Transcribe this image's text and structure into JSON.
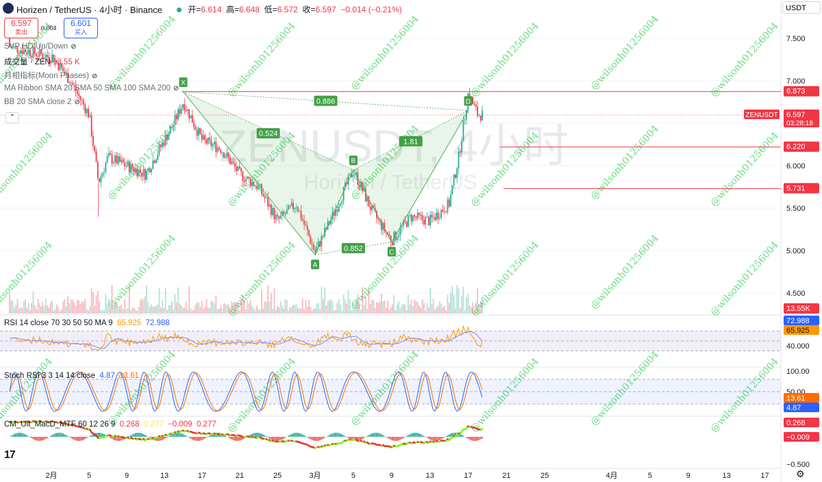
{
  "header": {
    "symbol_title": "Horizen / TetherUS · 4小时 · Binance",
    "ohlc": [
      {
        "label": "开=",
        "value": "6.614"
      },
      {
        "label": "高=",
        "value": "6.648"
      },
      {
        "label": "低=",
        "value": "6.572"
      },
      {
        "label": "收=",
        "value": "6.597"
      },
      {
        "label": "",
        "value": "−0.014 (−0.21%)"
      }
    ],
    "currency": "USDT"
  },
  "trade": {
    "sell_price": "6.597",
    "sell_label": "卖出",
    "buy_price": "6.601",
    "buy_label": "买入",
    "spread": "0.004"
  },
  "indicators": {
    "svp": "SVP HD Up/Down",
    "volume": "成交量 · ZEN",
    "volume_value": "13.55 K",
    "moon": "月相指标(Moon Phases)",
    "ma_ribbon": "MA Ribbon SMA 20 SMA 50 SMA 100 SMA 200",
    "bb": "BB 20 SMA close 2",
    "rsi_label": "RSI 14 close 70 30 50 50 MA 9",
    "rsi_value": "65.925",
    "rsi_ma_value": "72.988",
    "stoch_label": "Stoch RSI 3 3 14 14 close",
    "stoch_k": "4.87",
    "stoch_d": "13.61",
    "macd_label": "CM_Ult_MacD_MTF 60 12 26 9",
    "macd_v1": "0.268",
    "macd_v2": "0.277",
    "macd_v3": "−0.009",
    "macd_v4": "0.277"
  },
  "watermark": {
    "symbol": "ZENUSDT, 4小时",
    "name": "Horizen / TetherUS",
    "user": "@wilsonh01256004"
  },
  "colors": {
    "up": "#22ab94",
    "down": "#f23645",
    "pattern": "#4caf50",
    "level": "#f23645",
    "rsi": "#7e57c2",
    "stoch_k": "#2962ff",
    "stoch_d": "#ff6d00"
  },
  "chart_data": {
    "type": "candlestick",
    "title": "Horizen / TetherUS · 4小时 · Binance",
    "x_ticks": [
      "2月",
      "5",
      "9",
      "13",
      "17",
      "21",
      "25",
      "3月",
      "5",
      "9",
      "13",
      "17",
      "21",
      "25",
      "4月",
      "5",
      "9",
      "13",
      "17"
    ],
    "y_ticks": [
      "7.500",
      "7.000",
      "6.500",
      "6.000",
      "5.500",
      "5.000",
      "4.500"
    ],
    "ylim": [
      4.3,
      7.8
    ],
    "price_path": [
      {
        "date": "2/1",
        "price": 7.3
      },
      {
        "date": "2/3",
        "price": 7.0
      },
      {
        "date": "2/5",
        "price": 6.6
      },
      {
        "date": "2/6",
        "price": 5.8
      },
      {
        "date": "2/7",
        "price": 6.1
      },
      {
        "date": "2/9",
        "price": 6.0
      },
      {
        "date": "2/11",
        "price": 5.9
      },
      {
        "date": "2/14",
        "price": 6.5
      },
      {
        "date": "2/15",
        "price": 6.75
      },
      {
        "date": "2/17",
        "price": 6.3
      },
      {
        "date": "2/19",
        "price": 6.2
      },
      {
        "date": "2/21",
        "price": 5.9
      },
      {
        "date": "2/23",
        "price": 5.75
      },
      {
        "date": "2/25",
        "price": 5.35
      },
      {
        "date": "2/27",
        "price": 5.55
      },
      {
        "date": "3/1",
        "price": 4.98
      },
      {
        "date": "3/3",
        "price": 5.45
      },
      {
        "date": "3/5",
        "price": 5.95
      },
      {
        "date": "3/7",
        "price": 5.45
      },
      {
        "date": "3/9",
        "price": 5.12
      },
      {
        "date": "3/11",
        "price": 5.4
      },
      {
        "date": "3/13",
        "price": 5.35
      },
      {
        "date": "3/15",
        "price": 5.55
      },
      {
        "date": "3/16",
        "price": 6.1
      },
      {
        "date": "3/17",
        "price": 6.85
      },
      {
        "date": "3/18",
        "price": 6.6
      }
    ],
    "pattern": {
      "points": [
        {
          "label": "X",
          "date": "2/15",
          "price": 6.87
        },
        {
          "label": "A",
          "date": "3/1",
          "price": 4.95
        },
        {
          "label": "B",
          "date": "3/5",
          "price": 5.95
        },
        {
          "label": "C",
          "date": "3/9",
          "price": 5.1
        },
        {
          "label": "D",
          "date": "3/17",
          "price": 6.65
        }
      ],
      "ratios": [
        "0.886",
        "0.524",
        "1.81",
        "0.852"
      ]
    },
    "levels": [
      "6.873",
      "6.220",
      "5.731"
    ],
    "last_price": {
      "label": "ZENUSDT",
      "value": "6.597",
      "countdown": "03:28:18"
    },
    "volume_last": "13.55K",
    "rsi": {
      "ticks": [
        "40.000"
      ],
      "values": [
        "72.988",
        "65.925"
      ]
    },
    "stoch_rsi": {
      "ticks": [
        "100.00",
        "50.00"
      ],
      "values": [
        "13.61",
        "4.87"
      ]
    },
    "macd": {
      "ticks": [
        "−0.500"
      ],
      "values": [
        "0.268",
        "−0.009"
      ]
    }
  }
}
